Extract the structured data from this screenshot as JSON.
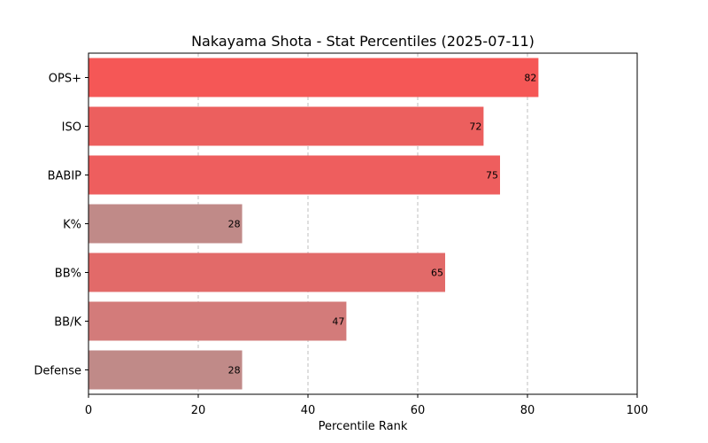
{
  "chart_data": {
    "type": "bar",
    "orientation": "horizontal",
    "title": "Nakayama Shota - Stat Percentiles (2025-07-11)",
    "xlabel": "Percentile Rank",
    "ylabel": "",
    "xlim": [
      0,
      100
    ],
    "xticks": [
      0,
      20,
      40,
      60,
      80,
      100
    ],
    "grid": "x-dashed",
    "legend": "none",
    "categories": [
      "OPS+",
      "ISO",
      "BABIP",
      "K%",
      "BB%",
      "BB/K",
      "Defense"
    ],
    "values": [
      82,
      72,
      75,
      28,
      65,
      47,
      28
    ],
    "colors": [
      "#f55756",
      "#ec5f5e",
      "#ee5e5e",
      "#c08a88",
      "#e26a69",
      "#d37b7a",
      "#c08a88"
    ]
  }
}
